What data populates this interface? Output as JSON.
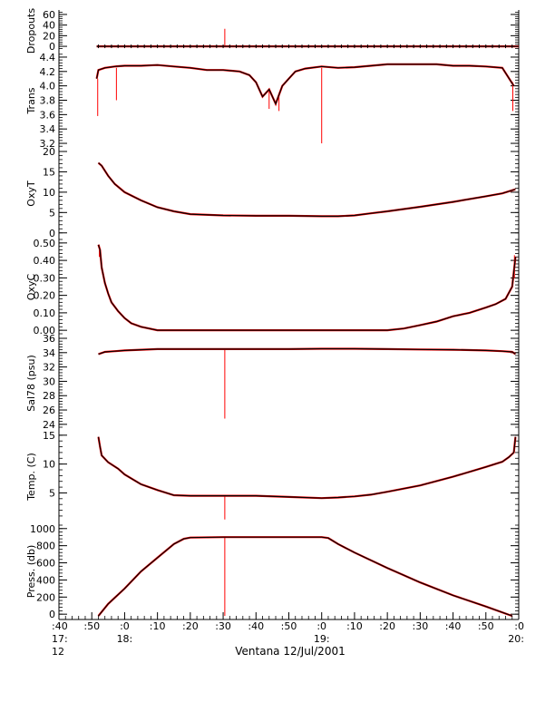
{
  "chart_data": {
    "type": "line",
    "xlabel": "Ventana 12/Jul/2001",
    "x_ticks": [
      {
        "t": 0,
        "minute": ":40",
        "hour": "17:",
        "extra": "12"
      },
      {
        "t": 10,
        "minute": ":50",
        "hour": "",
        "extra": ""
      },
      {
        "t": 20,
        "minute": ":0",
        "hour": "18:",
        "extra": ""
      },
      {
        "t": 30,
        "minute": ":10",
        "hour": "",
        "extra": ""
      },
      {
        "t": 40,
        "minute": ":20",
        "hour": "",
        "extra": ""
      },
      {
        "t": 50,
        "minute": ":30",
        "hour": "",
        "extra": ""
      },
      {
        "t": 60,
        "minute": ":40",
        "hour": "",
        "extra": ""
      },
      {
        "t": 70,
        "minute": ":50",
        "hour": "",
        "extra": ""
      },
      {
        "t": 80,
        "minute": ":0",
        "hour": "19:",
        "extra": ""
      },
      {
        "t": 90,
        "minute": ":10",
        "hour": "",
        "extra": ""
      },
      {
        "t": 100,
        "minute": ":20",
        "hour": "",
        "extra": ""
      },
      {
        "t": 110,
        "minute": ":30",
        "hour": "",
        "extra": ""
      },
      {
        "t": 120,
        "minute": ":40",
        "hour": "",
        "extra": ""
      },
      {
        "t": 130,
        "minute": ":50",
        "hour": "",
        "extra": ""
      },
      {
        "t": 140,
        "minute": ":0",
        "hour": "20:",
        "extra": ""
      }
    ],
    "xlim": [
      0,
      140
    ],
    "colors": {
      "data": "#000000",
      "raw": "#ff0000",
      "axis": "#000000"
    },
    "panels": [
      {
        "ylabel": "Dropouts",
        "ylim": [
          -5,
          65
        ],
        "yticks": [
          0,
          20,
          40,
          60
        ],
        "tick_labels": [
          "0",
          "20",
          "40",
          "60"
        ],
        "line": {
          "x": [
            11.5,
            20,
            40,
            60,
            80,
            100,
            120,
            151
          ],
          "y": [
            0,
            0,
            0,
            0,
            0,
            0,
            0,
            0
          ]
        },
        "spikes": [
          {
            "x": 50.5,
            "y0": 0,
            "y1": 33
          }
        ]
      },
      {
        "ylabel": "Trans",
        "ylim": [
          3.15,
          4.45
        ],
        "yticks": [
          3.2,
          3.4,
          3.6,
          3.8,
          4.0,
          4.2,
          4.4
        ],
        "tick_labels": [
          "3.2",
          "3.4",
          "3.6",
          "3.8",
          "4.0",
          "4.2",
          "4.4"
        ],
        "line": {
          "x": [
            11.5,
            12,
            14,
            17,
            20,
            25,
            30,
            35,
            40,
            45,
            50,
            55,
            58,
            60,
            62,
            64,
            66,
            68,
            70,
            72,
            75,
            80,
            85,
            90,
            95,
            100,
            105,
            110,
            115,
            120,
            125,
            130,
            135,
            138.5
          ],
          "y": [
            4.1,
            4.22,
            4.25,
            4.27,
            4.28,
            4.28,
            4.29,
            4.27,
            4.25,
            4.22,
            4.22,
            4.2,
            4.15,
            4.05,
            3.85,
            3.95,
            3.75,
            4.0,
            4.1,
            4.2,
            4.24,
            4.27,
            4.25,
            4.26,
            4.28,
            4.3,
            4.3,
            4.3,
            4.3,
            4.28,
            4.28,
            4.27,
            4.25,
            4.0
          ]
        },
        "spikes": [
          {
            "x": 11.8,
            "y0": 4.1,
            "y1": 3.58
          },
          {
            "x": 17.5,
            "y0": 4.25,
            "y1": 3.8
          },
          {
            "x": 64,
            "y0": 3.95,
            "y1": 3.68
          },
          {
            "x": 67,
            "y0": 3.9,
            "y1": 3.65
          },
          {
            "x": 80,
            "y0": 4.25,
            "y1": 3.2
          },
          {
            "x": 138.2,
            "y0": 4.05,
            "y1": 3.65
          }
        ]
      },
      {
        "ylabel": "OxyT",
        "ylim": [
          -0.5,
          20
        ],
        "yticks": [
          0,
          5,
          10,
          15,
          20
        ],
        "tick_labels": [
          "0",
          "5",
          "10",
          "15",
          "20"
        ],
        "line": {
          "x": [
            12,
            13,
            15,
            17,
            20,
            25,
            30,
            35,
            40,
            50,
            60,
            70,
            80,
            85,
            90,
            95,
            100,
            110,
            120,
            130,
            135,
            139
          ],
          "y": [
            17.2,
            16.5,
            14,
            12,
            10,
            8,
            6.3,
            5.3,
            4.6,
            4.3,
            4.2,
            4.2,
            4.1,
            4.1,
            4.3,
            4.8,
            5.3,
            6.4,
            7.6,
            9,
            9.7,
            10.7
          ]
        },
        "spikes": []
      },
      {
        "ylabel": "OxyC",
        "ylim": [
          -0.02,
          0.52
        ],
        "yticks": [
          0.0,
          0.1,
          0.2,
          0.3,
          0.4,
          0.5
        ],
        "tick_labels": [
          "0.00",
          "0.10",
          "0.20",
          "0.30",
          "0.40",
          "0.50"
        ],
        "line": {
          "x": [
            12,
            12.5,
            13,
            14,
            15,
            16,
            18,
            20,
            22,
            25,
            30,
            35,
            40,
            60,
            80,
            100,
            105,
            110,
            115,
            120,
            125,
            130,
            133,
            136,
            138,
            139
          ],
          "y": [
            0.49,
            0.46,
            0.36,
            0.27,
            0.21,
            0.16,
            0.11,
            0.07,
            0.04,
            0.02,
            0.0,
            0.0,
            0.0,
            0.0,
            0.0,
            0.0,
            0.01,
            0.03,
            0.05,
            0.08,
            0.1,
            0.13,
            0.15,
            0.18,
            0.25,
            0.42
          ]
        },
        "spikes": [
          {
            "x": 12.3,
            "y0": 0.49,
            "y1": 0.42
          },
          {
            "x": 138.7,
            "y0": 0.3,
            "y1": 0.43
          }
        ]
      },
      {
        "ylabel": "Sal78 (psu)",
        "ylim": [
          23.6,
          36
        ],
        "yticks": [
          24,
          26,
          28,
          30,
          32,
          34,
          36
        ],
        "tick_labels": [
          "24",
          "26",
          "28",
          "30",
          "32",
          "34",
          "36"
        ],
        "line": {
          "x": [
            12,
            14,
            17,
            20,
            25,
            30,
            40,
            50,
            60,
            70,
            80,
            90,
            100,
            110,
            120,
            130,
            135,
            138,
            139
          ],
          "y": [
            33.8,
            34.1,
            34.2,
            34.3,
            34.4,
            34.5,
            34.5,
            34.5,
            34.5,
            34.5,
            34.55,
            34.55,
            34.5,
            34.45,
            34.4,
            34.3,
            34.2,
            34.1,
            33.8
          ]
        },
        "spikes": [
          {
            "x": 50.5,
            "y0": 34.5,
            "y1": 24.8
          }
        ]
      },
      {
        "ylabel": "Temp. (C)",
        "ylim": [
          0.2,
          15.6
        ],
        "yticks": [
          5,
          10,
          15
        ],
        "tick_labels": [
          "5",
          "10",
          "15"
        ],
        "line": {
          "x": [
            12,
            12.5,
            13,
            15,
            18,
            20,
            25,
            30,
            35,
            40,
            50,
            60,
            70,
            80,
            85,
            90,
            95,
            100,
            110,
            120,
            130,
            135,
            137,
            138.5,
            139
          ],
          "y": [
            14.7,
            13,
            11.5,
            10.3,
            9.2,
            8.2,
            6.5,
            5.5,
            4.6,
            4.5,
            4.5,
            4.5,
            4.3,
            4.1,
            4.2,
            4.4,
            4.7,
            5.2,
            6.3,
            7.8,
            9.5,
            10.4,
            11.2,
            12,
            14.7
          ]
        },
        "spikes": [
          {
            "x": 50.5,
            "y0": 4.5,
            "y1": 0.4
          }
        ]
      },
      {
        "ylabel": "Press. (db)",
        "ylim": [
          -30,
          1040
        ],
        "yticks": [
          0,
          200,
          400,
          600,
          800,
          1000
        ],
        "tick_labels": [
          "0",
          "200",
          "400",
          "600",
          "800",
          "1000"
        ],
        "line": {
          "x": [
            12,
            15,
            20,
            25,
            30,
            35,
            38,
            40,
            50,
            60,
            70,
            80,
            82,
            85,
            90,
            100,
            110,
            120,
            130,
            138
          ],
          "y": [
            -20,
            120,
            300,
            500,
            660,
            820,
            880,
            895,
            900,
            900,
            900,
            900,
            890,
            820,
            720,
            540,
            370,
            220,
            90,
            -20
          ]
        },
        "spikes": [
          {
            "x": 50.5,
            "y0": 900,
            "y1": -20
          }
        ]
      }
    ]
  }
}
